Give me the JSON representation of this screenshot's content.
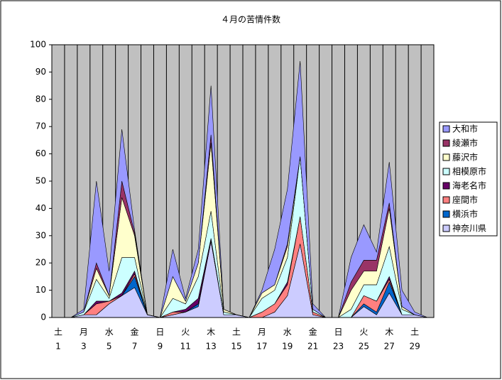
{
  "chart_data": {
    "type": "stacked_area",
    "title": "４月の苦情件数",
    "categories": [
      "1",
      null,
      "3",
      null,
      "5",
      null,
      "7",
      null,
      "9",
      null,
      "11",
      null,
      "13",
      null,
      "15",
      null,
      "17",
      null,
      "19",
      null,
      "21",
      null,
      "23",
      null,
      "25",
      null,
      "27",
      null,
      "29",
      null
    ],
    "weekdays": [
      "土",
      null,
      "月",
      null,
      "水",
      null,
      "金",
      null,
      "日",
      null,
      "火",
      null,
      "木",
      null,
      "土",
      null,
      "月",
      null,
      "水",
      null,
      "金",
      null,
      "日",
      null,
      "火",
      null,
      "木",
      null,
      "土",
      null
    ],
    "ylim": [
      0,
      100
    ],
    "yticks": [
      0,
      10,
      20,
      30,
      40,
      50,
      60,
      70,
      80,
      90,
      100
    ],
    "plot_background": "#c0c0c0",
    "legend": "right",
    "series": [
      {
        "name": "神奈川県",
        "color": "#ccccff",
        "values": [
          0,
          0,
          1,
          1,
          5,
          8,
          11,
          1,
          0,
          1,
          2,
          4,
          28,
          1,
          1,
          0,
          0,
          2,
          8,
          27,
          1,
          0,
          0,
          0,
          4,
          1,
          9,
          1,
          1,
          0
        ]
      },
      {
        "name": "横浜市",
        "color": "#0066cc",
        "values": [
          0,
          0,
          0,
          0,
          0,
          0,
          4,
          0,
          0,
          0,
          0,
          1,
          0,
          0,
          0,
          0,
          0,
          0,
          0,
          0,
          0,
          0,
          0,
          0,
          1,
          1,
          4,
          0,
          0,
          0
        ]
      },
      {
        "name": "座間市",
        "color": "#ff8080",
        "values": [
          0,
          0,
          0,
          4,
          1,
          0,
          1,
          0,
          0,
          1,
          0,
          0,
          0,
          0,
          0,
          0,
          2,
          3,
          4,
          10,
          1,
          0,
          0,
          0,
          3,
          4,
          1,
          0,
          0,
          0
        ]
      },
      {
        "name": "海老名市",
        "color": "#660066",
        "values": [
          0,
          0,
          0,
          1,
          0,
          1,
          1,
          0,
          0,
          0,
          1,
          2,
          1,
          0,
          0,
          0,
          0,
          0,
          1,
          0,
          0,
          0,
          0,
          0,
          0,
          0,
          1,
          0,
          0,
          0
        ]
      },
      {
        "name": "相模原市",
        "color": "#ccffff",
        "values": [
          0,
          0,
          1,
          8,
          1,
          13,
          5,
          0,
          0,
          5,
          2,
          8,
          10,
          1,
          0,
          0,
          5,
          5,
          9,
          22,
          1,
          0,
          0,
          3,
          4,
          6,
          11,
          2,
          0,
          0
        ]
      },
      {
        "name": "藤沢市",
        "color": "#ffffcc",
        "values": [
          0,
          0,
          0,
          4,
          1,
          22,
          8,
          0,
          0,
          8,
          1,
          5,
          25,
          1,
          0,
          0,
          2,
          2,
          4,
          0,
          0,
          0,
          0,
          7,
          5,
          5,
          14,
          1,
          0,
          0
        ]
      },
      {
        "name": "綾瀬市",
        "color": "#993366",
        "values": [
          0,
          0,
          0,
          2,
          0,
          6,
          1,
          0,
          0,
          0,
          0,
          0,
          3,
          0,
          0,
          0,
          0,
          0,
          1,
          0,
          0,
          0,
          0,
          3,
          4,
          4,
          2,
          0,
          0,
          0
        ]
      },
      {
        "name": "大和市",
        "color": "#9999ff",
        "values": [
          0,
          0,
          1,
          30,
          9,
          19,
          1,
          0,
          0,
          10,
          1,
          5,
          18,
          0,
          0,
          0,
          1,
          13,
          20,
          35,
          2,
          0,
          0,
          9,
          13,
          3,
          15,
          6,
          1,
          0
        ]
      }
    ]
  }
}
